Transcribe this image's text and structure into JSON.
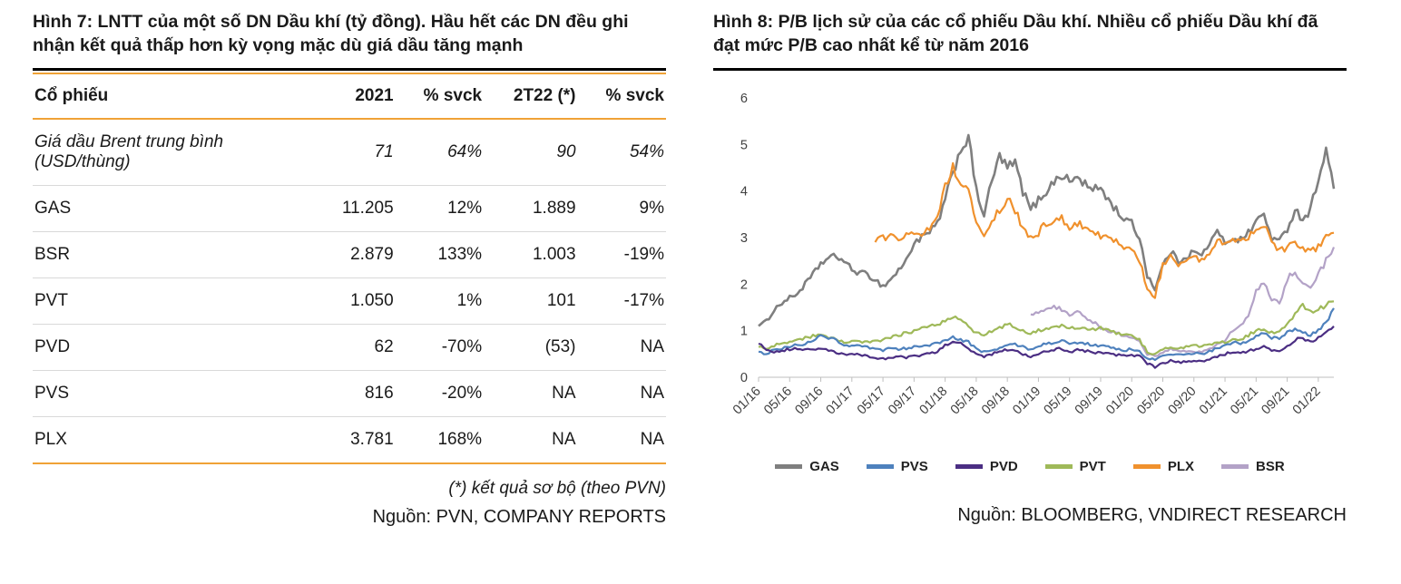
{
  "colors": {
    "accent_orange": "#F0A236",
    "row_divider": "#D9D9D9",
    "axis_gray": "#BFBFBF",
    "title_underline": "#000000"
  },
  "left_panel": {
    "title": "Hình 7: LNTT của một số DN Dầu khí (tỷ đồng). Hầu hết các DN đều ghi nhận kết quả thấp hơn kỳ vọng mặc dù giá dầu tăng mạnh",
    "table": {
      "columns": [
        "Cổ phiếu",
        "2021",
        "% svck",
        "2T22 (*)",
        "% svck"
      ],
      "rows": [
        {
          "name": "Giá dầu Brent trung bình (USD/thùng)",
          "italic": true,
          "values": [
            "71",
            "64%",
            "90",
            "54%"
          ]
        },
        {
          "name": "GAS",
          "italic": false,
          "values": [
            "11.205",
            "12%",
            "1.889",
            "9%"
          ]
        },
        {
          "name": "BSR",
          "italic": false,
          "values": [
            "2.879",
            "133%",
            "1.003",
            "-19%"
          ]
        },
        {
          "name": "PVT",
          "italic": false,
          "values": [
            "1.050",
            "1%",
            "101",
            "-17%"
          ]
        },
        {
          "name": "PVD",
          "italic": false,
          "values": [
            "62",
            "-70%",
            "(53)",
            "NA"
          ]
        },
        {
          "name": "PVS",
          "italic": false,
          "values": [
            "816",
            "-20%",
            "NA",
            "NA"
          ]
        },
        {
          "name": "PLX",
          "italic": false,
          "values": [
            "3.781",
            "168%",
            "NA",
            "NA"
          ]
        }
      ]
    },
    "footnote": "(*) kết quả sơ bộ (theo PVN)",
    "source": "Nguồn: PVN, COMPANY REPORTS"
  },
  "right_panel": {
    "title": "Hình 8: P/B lịch sử của các cổ phiếu Dầu khí. Nhiều cổ phiếu Dầu khí đã đạt mức P/B cao nhất kể từ năm 2016",
    "source": "Nguồn: BLOOMBERG, VNDIRECT RESEARCH"
  },
  "chart_data": {
    "type": "line",
    "title": "",
    "xlabel": "",
    "ylabel": "",
    "ylim": [
      0,
      6
    ],
    "yticks": [
      0,
      1,
      2,
      3,
      4,
      5,
      6
    ],
    "grid": false,
    "legend_position": "bottom",
    "x_frequency": "monthly",
    "x_start": "01/16",
    "x_end": "03/22",
    "xtick_labels": [
      "01/16",
      "05/16",
      "09/16",
      "01/17",
      "05/17",
      "09/17",
      "01/18",
      "05/18",
      "09/18",
      "01/19",
      "05/19",
      "09/19",
      "01/20",
      "05/20",
      "09/20",
      "01/21",
      "05/21",
      "09/21",
      "01/22"
    ],
    "xtick_indices": [
      0,
      4,
      8,
      12,
      16,
      20,
      24,
      28,
      32,
      36,
      40,
      44,
      48,
      52,
      56,
      60,
      64,
      68,
      72
    ],
    "series": [
      {
        "name": "GAS",
        "color": "#7F7F7F",
        "values": [
          1.1,
          1.2,
          1.45,
          1.6,
          1.7,
          1.8,
          2.0,
          2.2,
          2.45,
          2.55,
          2.6,
          2.5,
          2.3,
          2.25,
          2.2,
          2.1,
          1.95,
          2.1,
          2.3,
          2.5,
          2.9,
          3.0,
          3.1,
          3.3,
          3.8,
          4.4,
          4.9,
          5.15,
          4.0,
          3.5,
          4.2,
          4.75,
          4.5,
          4.6,
          4.0,
          3.6,
          3.8,
          4.0,
          4.2,
          4.35,
          4.2,
          4.3,
          4.15,
          4.0,
          4.1,
          3.8,
          3.6,
          3.4,
          3.3,
          3.0,
          2.2,
          1.9,
          2.4,
          2.7,
          2.5,
          2.6,
          2.7,
          2.6,
          2.9,
          3.1,
          2.9,
          3.0,
          2.95,
          3.1,
          3.35,
          3.5,
          3.0,
          2.9,
          3.2,
          3.6,
          3.4,
          3.6,
          4.3,
          4.85,
          4.1
        ]
      },
      {
        "name": "PVS",
        "color": "#4E81BD",
        "values": [
          0.55,
          0.5,
          0.6,
          0.62,
          0.65,
          0.7,
          0.72,
          0.8,
          0.88,
          0.85,
          0.8,
          0.7,
          0.68,
          0.66,
          0.64,
          0.6,
          0.58,
          0.62,
          0.6,
          0.62,
          0.66,
          0.68,
          0.7,
          0.72,
          0.8,
          0.85,
          0.8,
          0.75,
          0.6,
          0.55,
          0.58,
          0.62,
          0.68,
          0.72,
          0.65,
          0.6,
          0.68,
          0.72,
          0.75,
          0.78,
          0.72,
          0.74,
          0.72,
          0.7,
          0.68,
          0.64,
          0.6,
          0.58,
          0.6,
          0.55,
          0.4,
          0.38,
          0.45,
          0.5,
          0.48,
          0.5,
          0.52,
          0.5,
          0.55,
          0.62,
          0.68,
          0.75,
          0.72,
          0.78,
          0.9,
          0.95,
          0.85,
          0.82,
          0.95,
          1.05,
          0.95,
          0.9,
          1.0,
          1.2,
          1.45
        ]
      },
      {
        "name": "PVD",
        "color": "#4B2E83",
        "values": [
          0.72,
          0.6,
          0.55,
          0.58,
          0.6,
          0.62,
          0.58,
          0.6,
          0.62,
          0.58,
          0.52,
          0.48,
          0.5,
          0.48,
          0.46,
          0.42,
          0.4,
          0.42,
          0.44,
          0.42,
          0.45,
          0.48,
          0.5,
          0.55,
          0.68,
          0.78,
          0.72,
          0.6,
          0.5,
          0.45,
          0.5,
          0.55,
          0.6,
          0.58,
          0.5,
          0.45,
          0.5,
          0.55,
          0.6,
          0.62,
          0.55,
          0.58,
          0.56,
          0.54,
          0.52,
          0.5,
          0.48,
          0.46,
          0.48,
          0.45,
          0.3,
          0.22,
          0.3,
          0.35,
          0.32,
          0.33,
          0.35,
          0.33,
          0.38,
          0.45,
          0.5,
          0.55,
          0.52,
          0.55,
          0.62,
          0.65,
          0.58,
          0.55,
          0.65,
          0.8,
          0.85,
          0.75,
          0.85,
          1.0,
          1.1
        ]
      },
      {
        "name": "PVT",
        "color": "#9FB959",
        "values": [
          0.65,
          0.6,
          0.68,
          0.72,
          0.75,
          0.8,
          0.85,
          0.88,
          0.9,
          0.85,
          0.8,
          0.75,
          0.78,
          0.76,
          0.74,
          0.78,
          0.8,
          0.85,
          0.9,
          0.95,
          1.0,
          1.05,
          1.1,
          1.15,
          1.2,
          1.3,
          1.25,
          1.1,
          0.95,
          0.9,
          1.0,
          1.05,
          1.15,
          1.1,
          1.0,
          0.95,
          1.0,
          1.05,
          1.1,
          1.12,
          1.05,
          1.08,
          1.05,
          1.02,
          1.05,
          1.0,
          0.95,
          0.9,
          0.88,
          0.8,
          0.55,
          0.5,
          0.6,
          0.65,
          0.62,
          0.65,
          0.68,
          0.65,
          0.7,
          0.75,
          0.75,
          0.8,
          0.82,
          0.9,
          1.0,
          1.05,
          0.95,
          1.0,
          1.15,
          1.35,
          1.55,
          1.4,
          1.45,
          1.55,
          1.65
        ]
      },
      {
        "name": "PLX",
        "color": "#F0912D",
        "values": [
          null,
          null,
          null,
          null,
          null,
          null,
          null,
          null,
          null,
          null,
          null,
          null,
          null,
          null,
          null,
          2.9,
          3.0,
          3.05,
          3.0,
          3.1,
          3.05,
          3.1,
          3.2,
          3.5,
          4.1,
          4.5,
          4.2,
          4.0,
          3.4,
          3.0,
          3.3,
          3.6,
          3.85,
          3.6,
          3.2,
          3.0,
          3.1,
          3.3,
          3.4,
          3.45,
          3.2,
          3.3,
          3.25,
          3.1,
          3.05,
          3.0,
          2.9,
          2.8,
          2.7,
          2.5,
          1.9,
          1.75,
          2.4,
          2.6,
          2.4,
          2.5,
          2.55,
          2.5,
          2.7,
          2.9,
          2.9,
          3.0,
          2.95,
          3.0,
          3.2,
          3.3,
          2.9,
          2.7,
          2.8,
          2.9,
          2.8,
          2.7,
          2.8,
          3.0,
          3.15
        ]
      },
      {
        "name": "BSR",
        "color": "#B3A2C7",
        "values": [
          null,
          null,
          null,
          null,
          null,
          null,
          null,
          null,
          null,
          null,
          null,
          null,
          null,
          null,
          null,
          null,
          null,
          null,
          null,
          null,
          null,
          null,
          null,
          null,
          null,
          null,
          null,
          null,
          null,
          null,
          null,
          null,
          null,
          null,
          null,
          1.35,
          1.4,
          1.45,
          1.5,
          1.45,
          1.35,
          1.4,
          1.3,
          1.2,
          1.05,
          1.0,
          0.95,
          0.9,
          0.85,
          0.75,
          0.5,
          0.45,
          0.55,
          0.6,
          0.55,
          0.55,
          0.55,
          0.55,
          0.6,
          0.7,
          0.8,
          1.0,
          1.1,
          1.3,
          1.9,
          2.0,
          1.7,
          1.6,
          2.1,
          2.3,
          2.0,
          1.9,
          2.2,
          2.5,
          2.75
        ]
      }
    ]
  }
}
